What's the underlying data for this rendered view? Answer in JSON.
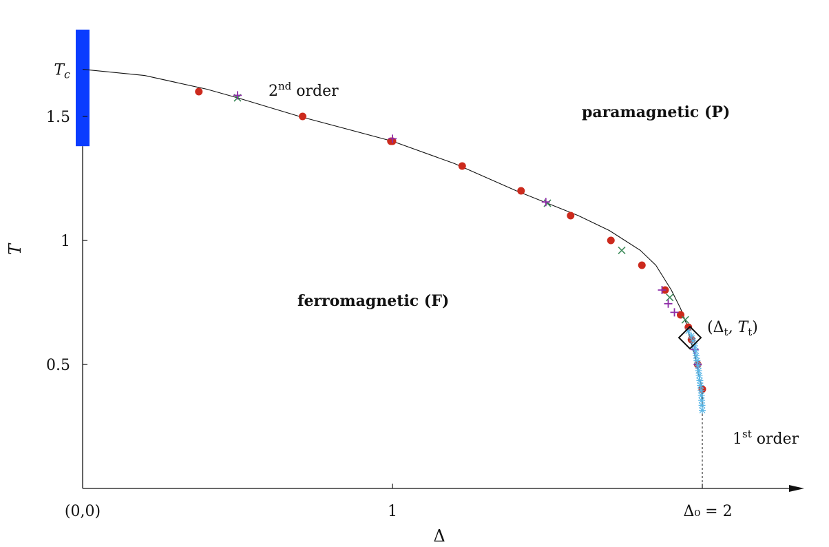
{
  "chart_data": {
    "type": "scatter",
    "title": "",
    "xlabel": "Δ",
    "ylabel": "T",
    "xlim": [
      0,
      2.3
    ],
    "ylim": [
      0,
      1.85
    ],
    "grid": false,
    "x_ticks": [
      {
        "value": 0,
        "label": "(0,0)"
      },
      {
        "value": 1,
        "label": "1"
      },
      {
        "value": 2,
        "label": "Δ₀ = 2"
      }
    ],
    "y_ticks": [
      {
        "value": 0.5,
        "label": "0.5"
      },
      {
        "value": 1,
        "label": "1"
      },
      {
        "value": 1.5,
        "label": "1.5"
      }
    ],
    "tc_label": "Tc",
    "tc_value": 1.69,
    "tc_bar_range": [
      1.38,
      1.85
    ],
    "bar_color": "#0a3cff",
    "regions": {
      "ferromagnetic": "ferromagnetic (F)",
      "paramagnetic": "paramagnetic (P)"
    },
    "annotations": {
      "second_order": {
        "text": "2",
        "sup": "nd",
        "rest": " order"
      },
      "first_order": {
        "text": "1",
        "sup": "st",
        "rest": " order"
      },
      "tricritical": {
        "text": "(Δt, Tt)",
        "x": 1.96,
        "y": 0.608
      }
    },
    "boundary_line": [
      [
        0,
        1.69
      ],
      [
        0.2,
        1.665
      ],
      [
        0.4,
        1.61
      ],
      [
        0.5,
        1.575
      ],
      [
        0.7,
        1.5
      ],
      [
        1.0,
        1.4
      ],
      [
        1.2,
        1.31
      ],
      [
        1.4,
        1.2
      ],
      [
        1.5,
        1.15
      ],
      [
        1.6,
        1.1
      ],
      [
        1.7,
        1.04
      ],
      [
        1.75,
        1.0
      ],
      [
        1.8,
        0.96
      ],
      [
        1.85,
        0.9
      ],
      [
        1.9,
        0.8
      ],
      [
        1.93,
        0.725
      ],
      [
        1.95,
        0.66
      ],
      [
        1.96,
        0.608
      ],
      [
        1.975,
        0.54
      ],
      [
        1.99,
        0.45
      ],
      [
        2.0,
        0.4
      ],
      [
        2.0,
        0.3
      ]
    ],
    "first_order_dashed": [
      [
        2.0,
        0.3
      ],
      [
        2.0,
        0.0
      ]
    ],
    "series": [
      {
        "marker": "circle",
        "color": "#cc2a1d",
        "points": [
          [
            0.375,
            1.6
          ],
          [
            0.71,
            1.5
          ],
          [
            0.995,
            1.4
          ],
          [
            1.0,
            1.4
          ],
          [
            1.225,
            1.3
          ],
          [
            1.415,
            1.2
          ],
          [
            1.575,
            1.1
          ],
          [
            1.705,
            1.0
          ],
          [
            1.805,
            0.9
          ],
          [
            1.88,
            0.8
          ],
          [
            1.93,
            0.7
          ],
          [
            1.955,
            0.65
          ],
          [
            1.965,
            0.6
          ],
          [
            1.985,
            0.5
          ],
          [
            2.0,
            0.4
          ]
        ]
      },
      {
        "marker": "cross",
        "color": "#3d8b5a",
        "points": [
          [
            0.5,
            1.575
          ],
          [
            1.5,
            1.15
          ],
          [
            1.74,
            0.96
          ],
          [
            1.895,
            0.77
          ],
          [
            1.945,
            0.68
          ]
        ]
      },
      {
        "marker": "plus",
        "color": "#8e2da8",
        "points": [
          [
            0.5,
            1.585
          ],
          [
            1.0,
            1.41
          ],
          [
            1.495,
            1.155
          ],
          [
            1.87,
            0.8
          ],
          [
            1.89,
            0.745
          ],
          [
            1.91,
            0.71
          ],
          [
            1.975,
            0.56
          ],
          [
            1.985,
            0.5
          ]
        ]
      },
      {
        "marker": "star",
        "color": "#5ab6e6",
        "points": [
          [
            1.955,
            0.635
          ],
          [
            1.965,
            0.615
          ],
          [
            1.97,
            0.595
          ],
          [
            1.975,
            0.575
          ],
          [
            1.978,
            0.555
          ],
          [
            1.98,
            0.535
          ],
          [
            1.983,
            0.515
          ],
          [
            1.986,
            0.495
          ],
          [
            1.988,
            0.475
          ],
          [
            1.99,
            0.455
          ],
          [
            1.992,
            0.435
          ],
          [
            1.994,
            0.415
          ],
          [
            1.996,
            0.395
          ],
          [
            1.997,
            0.375
          ],
          [
            1.998,
            0.355
          ],
          [
            1.999,
            0.335
          ],
          [
            2.0,
            0.315
          ]
        ]
      }
    ]
  }
}
